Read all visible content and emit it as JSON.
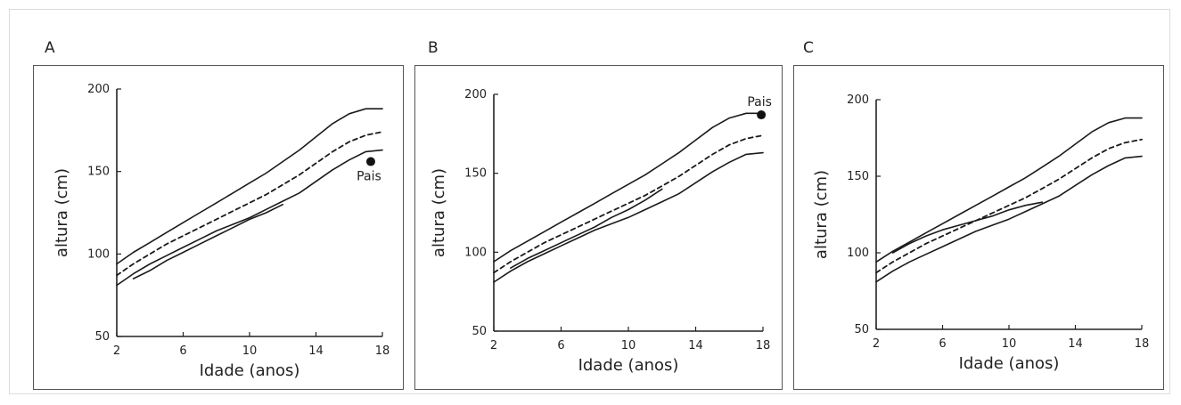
{
  "chart_data": [
    {
      "panel": "A",
      "type": "line",
      "xlabel": "Idade (anos)",
      "ylabel": "altura (cm)",
      "xticks": [
        "2",
        "6",
        "10",
        "14",
        "18"
      ],
      "yticks": [
        "50",
        "100",
        "150",
        "200"
      ],
      "xlim": [
        2,
        18
      ],
      "ylim": [
        50,
        200
      ],
      "series": [
        {
          "style": "solid",
          "x": [
            2,
            3,
            4,
            5,
            6,
            7,
            8,
            9,
            10,
            11,
            12,
            13,
            14,
            15,
            16,
            17,
            18
          ],
          "y": [
            94,
            101,
            107,
            113,
            119,
            125,
            131,
            137,
            143,
            149,
            156,
            163,
            171,
            179,
            185,
            188,
            188
          ]
        },
        {
          "style": "dashed",
          "x": [
            2,
            3,
            4,
            5,
            6,
            7,
            8,
            9,
            10,
            11,
            12,
            13,
            14,
            15,
            16,
            17,
            18
          ],
          "y": [
            87,
            94,
            100,
            106,
            111,
            116,
            121,
            126,
            131,
            136,
            142,
            148,
            155,
            162,
            168,
            172,
            174
          ]
        },
        {
          "style": "solid",
          "x": [
            2,
            3,
            4,
            5,
            6,
            7,
            8,
            9,
            10,
            11,
            12,
            13,
            14,
            15,
            16,
            17,
            18
          ],
          "y": [
            81,
            88,
            94,
            99,
            104,
            109,
            114,
            118,
            122,
            127,
            132,
            137,
            144,
            151,
            157,
            162,
            163
          ]
        },
        {
          "style": "solid",
          "x": [
            3,
            4,
            5,
            6,
            7,
            8,
            9,
            10,
            11,
            12
          ],
          "y": [
            85,
            90,
            96,
            101,
            106,
            111,
            116,
            121,
            125,
            130
          ]
        }
      ],
      "point": {
        "x": 17.3,
        "y": 156,
        "label": "Pais"
      }
    },
    {
      "panel": "B",
      "type": "line",
      "xlabel": "Idade (anos)",
      "ylabel": "altura (cm)",
      "xticks": [
        "2",
        "6",
        "10",
        "14",
        "18"
      ],
      "yticks": [
        "50",
        "100",
        "150",
        "200"
      ],
      "xlim": [
        2,
        18
      ],
      "ylim": [
        50,
        200
      ],
      "series": [
        {
          "style": "solid",
          "x": [
            2,
            3,
            4,
            5,
            6,
            7,
            8,
            9,
            10,
            11,
            12,
            13,
            14,
            15,
            16,
            17,
            18
          ],
          "y": [
            94,
            101,
            107,
            113,
            119,
            125,
            131,
            137,
            143,
            149,
            156,
            163,
            171,
            179,
            185,
            188,
            188
          ]
        },
        {
          "style": "dashed",
          "x": [
            2,
            3,
            4,
            5,
            6,
            7,
            8,
            9,
            10,
            11,
            12,
            13,
            14,
            15,
            16,
            17,
            18
          ],
          "y": [
            87,
            94,
            100,
            106,
            111,
            116,
            121,
            126,
            131,
            136,
            142,
            148,
            155,
            162,
            168,
            172,
            174
          ]
        },
        {
          "style": "solid",
          "x": [
            2,
            3,
            4,
            5,
            6,
            7,
            8,
            9,
            10,
            11,
            12,
            13,
            14,
            15,
            16,
            17,
            18
          ],
          "y": [
            81,
            88,
            94,
            99,
            104,
            109,
            114,
            118,
            122,
            127,
            132,
            137,
            144,
            151,
            157,
            162,
            163
          ]
        },
        {
          "style": "solid",
          "x": [
            3,
            4,
            5,
            6,
            7,
            8,
            9,
            10,
            11,
            12
          ],
          "y": [
            90,
            96,
            101,
            106,
            111,
            116,
            122,
            127,
            133,
            140
          ]
        }
      ],
      "point": {
        "x": 17.9,
        "y": 187,
        "label": "Pais"
      }
    },
    {
      "panel": "C",
      "type": "line",
      "xlabel": "Idade (anos)",
      "ylabel": "altura (cm)",
      "xticks": [
        "2",
        "6",
        "10",
        "14",
        "18"
      ],
      "yticks": [
        "50",
        "100",
        "150",
        "200"
      ],
      "xlim": [
        2,
        18
      ],
      "ylim": [
        50,
        200
      ],
      "series": [
        {
          "style": "solid",
          "x": [
            2,
            3,
            4,
            5,
            6,
            7,
            8,
            9,
            10,
            11,
            12,
            13,
            14,
            15,
            16,
            17,
            18
          ],
          "y": [
            94,
            101,
            107,
            113,
            119,
            125,
            131,
            137,
            143,
            149,
            156,
            163,
            171,
            179,
            185,
            188,
            188
          ]
        },
        {
          "style": "dashed",
          "x": [
            2,
            3,
            4,
            5,
            6,
            7,
            8,
            9,
            10,
            11,
            12,
            13,
            14,
            15,
            16,
            17,
            18
          ],
          "y": [
            87,
            94,
            100,
            106,
            111,
            116,
            121,
            126,
            131,
            136,
            142,
            148,
            155,
            162,
            168,
            172,
            174
          ]
        },
        {
          "style": "solid",
          "x": [
            2,
            3,
            4,
            5,
            6,
            7,
            8,
            9,
            10,
            11,
            12,
            13,
            14,
            15,
            16,
            17,
            18
          ],
          "y": [
            81,
            88,
            94,
            99,
            104,
            109,
            114,
            118,
            122,
            127,
            132,
            137,
            144,
            151,
            157,
            162,
            163
          ]
        },
        {
          "style": "solid",
          "x": [
            3,
            4,
            5,
            6,
            7,
            8,
            9,
            10,
            11,
            12
          ],
          "y": [
            100,
            106,
            111,
            115,
            118,
            121,
            124,
            128,
            131,
            133
          ]
        }
      ]
    }
  ]
}
